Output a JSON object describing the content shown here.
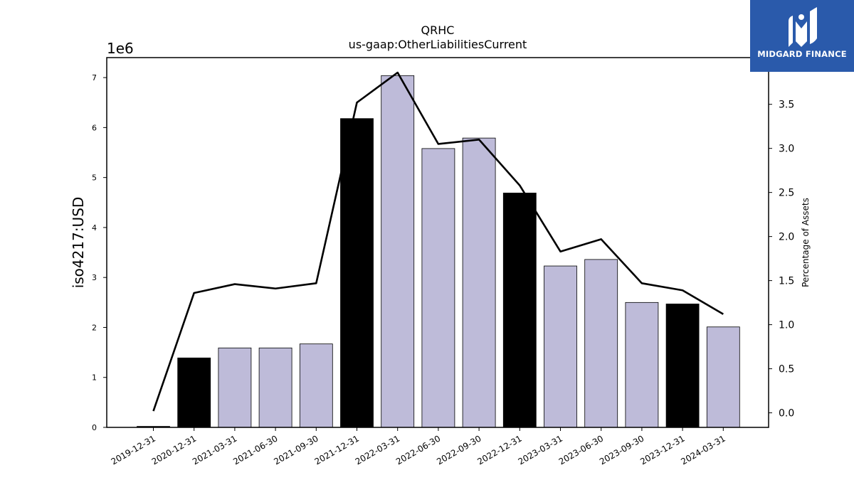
{
  "logo": {
    "text": "MIDGARD FINANCE"
  },
  "chart_data": {
    "type": "bar",
    "title": "QRHC",
    "subtitle": "us-gaap:OtherLiabilitiesCurrent",
    "ylabel": "iso4217:USD",
    "y2label": "Percentage of Assets",
    "offset_label": "1e6",
    "categories": [
      "2019-12-31",
      "2020-12-31",
      "2021-03-31",
      "2021-06-30",
      "2021-09-30",
      "2021-12-31",
      "2022-03-31",
      "2022-06-30",
      "2022-09-30",
      "2022-12-31",
      "2023-03-31",
      "2023-06-30",
      "2023-09-30",
      "2023-12-31",
      "2024-03-31"
    ],
    "bar_values": [
      0.02,
      1.39,
      1.59,
      1.59,
      1.67,
      6.18,
      7.04,
      5.58,
      5.79,
      4.69,
      3.23,
      3.36,
      2.5,
      2.47,
      2.01
    ],
    "bar_highlight": [
      true,
      true,
      false,
      false,
      false,
      true,
      false,
      false,
      false,
      true,
      false,
      false,
      false,
      true,
      false
    ],
    "line_values": [
      0.02,
      1.36,
      1.46,
      1.41,
      1.47,
      3.52,
      3.86,
      3.05,
      3.1,
      2.58,
      1.83,
      1.97,
      1.47,
      1.39,
      1.12
    ],
    "ylim": [
      0,
      7.4
    ],
    "y2lim": [
      -0.165,
      4.03
    ],
    "yticks": [
      0,
      1,
      2,
      3,
      4,
      5,
      6,
      7
    ],
    "y2ticks": [
      0.0,
      0.5,
      1.0,
      1.5,
      2.0,
      2.5,
      3.0,
      3.5
    ],
    "colors": {
      "bar": "#bebbd9",
      "bar_highlight": "#000000",
      "line": "#000000"
    }
  }
}
